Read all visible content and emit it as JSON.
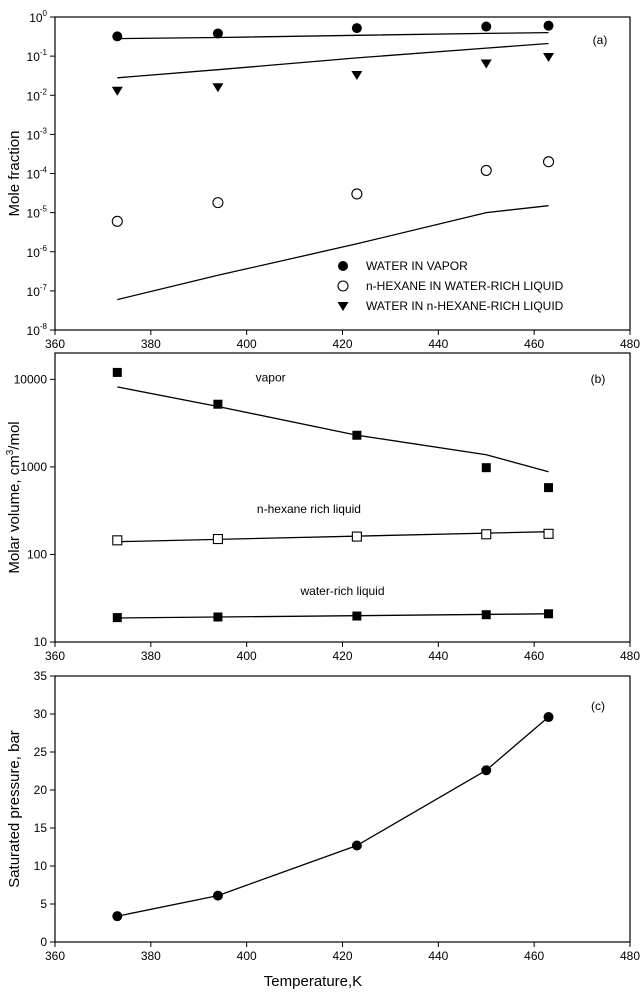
{
  "xlabel": "Temperature,K",
  "chart_data": [
    {
      "type": "scatter",
      "panel_label": "(a)",
      "ylabel": "Mole fraction",
      "yscale": "log",
      "xlim": [
        360,
        480
      ],
      "ylim": [
        1e-08,
        1
      ],
      "x_ticks": [
        360,
        380,
        400,
        420,
        440,
        460,
        480
      ],
      "y_ticks": [
        {
          "base": "10",
          "exp": "0"
        },
        {
          "base": "10",
          "exp": "-1"
        },
        {
          "base": "10",
          "exp": "-2"
        },
        {
          "base": "10",
          "exp": "-3"
        },
        {
          "base": "10",
          "exp": "-4"
        },
        {
          "base": "10",
          "exp": "-5"
        },
        {
          "base": "10",
          "exp": "-6"
        },
        {
          "base": "10",
          "exp": "-7"
        },
        {
          "base": "10",
          "exp": "-8"
        }
      ],
      "legend_position": "bottom-right",
      "series": [
        {
          "name": "WATER IN VAPOR",
          "marker": "filled-circle",
          "x": [
            373,
            394,
            423,
            450,
            463
          ],
          "y": [
            0.32,
            0.38,
            0.52,
            0.57,
            0.6
          ],
          "model_x": [
            373,
            394,
            423,
            450,
            463
          ],
          "model_y": [
            0.28,
            0.3,
            0.34,
            0.38,
            0.4
          ]
        },
        {
          "name": "n-HEXANE IN WATER-RICH LIQUID",
          "marker": "open-circle",
          "x": [
            373,
            394,
            423,
            450,
            463
          ],
          "y": [
            6e-06,
            1.8e-05,
            3e-05,
            0.00012,
            0.0002
          ],
          "model_x": [
            373,
            394,
            423,
            450,
            463
          ],
          "model_y": [
            6e-08,
            2.5e-07,
            1.6e-06,
            1e-05,
            1.5e-05
          ]
        },
        {
          "name": "WATER IN n-HEXANE-RICH LIQUID",
          "marker": "filled-triangle-down",
          "x": [
            373,
            394,
            423,
            450,
            463
          ],
          "y": [
            0.013,
            0.016,
            0.033,
            0.065,
            0.095
          ],
          "model_x": [
            373,
            394,
            423,
            450,
            463
          ],
          "model_y": [
            0.028,
            0.045,
            0.09,
            0.16,
            0.21
          ]
        }
      ]
    },
    {
      "type": "scatter",
      "panel_label": "(b)",
      "ylabel_main": "Molar volume, cm",
      "ylabel_sup": "3",
      "ylabel_tail": "/mol",
      "yscale": "log",
      "xlim": [
        360,
        480
      ],
      "ylim": [
        10,
        20000
      ],
      "x_ticks": [
        360,
        380,
        400,
        420,
        440,
        460,
        480
      ],
      "y_ticks": [
        "10",
        "100",
        "1000",
        "10000"
      ],
      "annotations": [
        {
          "text": "vapor",
          "x": 405,
          "y": 10500
        },
        {
          "text": "n-hexane rich liquid",
          "x": 413,
          "y": 330
        },
        {
          "text": "water-rich liquid",
          "x": 420,
          "y": 38
        }
      ],
      "series": [
        {
          "name": "vapor",
          "marker": "filled-square",
          "x": [
            373,
            394,
            423,
            450,
            463
          ],
          "y": [
            12000,
            5200,
            2300,
            980,
            580
          ],
          "model_x": [
            373,
            394,
            423,
            450,
            463
          ],
          "model_y": [
            8200,
            4900,
            2300,
            1380,
            880
          ]
        },
        {
          "name": "n-hexane rich liquid",
          "marker": "open-square",
          "x": [
            373,
            394,
            423,
            450,
            463
          ],
          "y": [
            145,
            150,
            160,
            170,
            172
          ],
          "model_x": [
            373,
            463
          ],
          "model_y": [
            140,
            182
          ]
        },
        {
          "name": "water-rich liquid",
          "marker": "filled-square",
          "x": [
            373,
            394,
            423,
            450,
            463
          ],
          "y": [
            19,
            19.3,
            19.8,
            20.5,
            21
          ],
          "model_x": [
            373,
            463
          ],
          "model_y": [
            18.8,
            21
          ]
        }
      ]
    },
    {
      "type": "line",
      "panel_label": "(c)",
      "ylabel": "Saturated pressure, bar",
      "yscale": "linear",
      "xlim": [
        360,
        480
      ],
      "ylim": [
        0,
        35
      ],
      "x_ticks": [
        360,
        380,
        400,
        420,
        440,
        460,
        480
      ],
      "y_ticks": [
        0,
        5,
        10,
        15,
        20,
        25,
        30,
        35
      ],
      "series": [
        {
          "name": "",
          "marker": "filled-circle",
          "x": [
            373,
            394,
            423,
            450,
            463
          ],
          "y": [
            3.4,
            6.1,
            12.7,
            22.6,
            29.6
          ]
        }
      ]
    }
  ]
}
